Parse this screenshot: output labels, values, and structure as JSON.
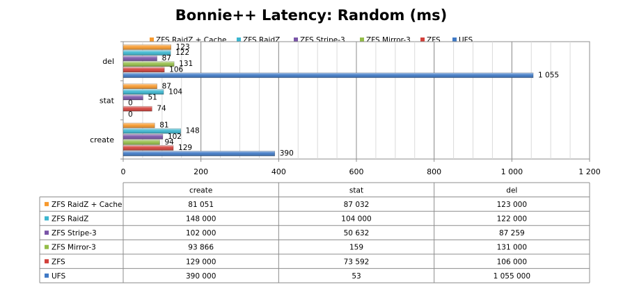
{
  "chart_data": {
    "type": "bar",
    "orientation": "horizontal",
    "title": "Bonnie++ Latency: Random (ms)",
    "categories": [
      "create",
      "stat",
      "del"
    ],
    "xlim": [
      0,
      1200
    ],
    "xticks": [
      0,
      200,
      400,
      600,
      800,
      1000,
      1200
    ],
    "xtick_labels": [
      "0",
      "200",
      "400",
      "600",
      "800",
      "1 000",
      "1 200"
    ],
    "grid": true,
    "legend_position": "top",
    "series": [
      {
        "name": "ZFS RaidZ + Cache",
        "color": "#F79A2E",
        "values": [
          81,
          87,
          123
        ],
        "labels": [
          "81",
          "87",
          "123"
        ],
        "table": [
          "81 051",
          "87 032",
          "123 000"
        ]
      },
      {
        "name": "ZFS RaidZ",
        "color": "#3BB6CF",
        "values": [
          148,
          104,
          122
        ],
        "labels": [
          "148",
          "104",
          "122"
        ],
        "table": [
          "148 000",
          "104 000",
          "122 000"
        ]
      },
      {
        "name": "ZFS Stripe-3",
        "color": "#7A55A8",
        "values": [
          102,
          51,
          87
        ],
        "labels": [
          "102",
          "51",
          "87"
        ],
        "table": [
          "102 000",
          "50 632",
          "87 259"
        ]
      },
      {
        "name": "ZFS Mirror-3",
        "color": "#94BD48",
        "values": [
          94,
          0,
          131
        ],
        "labels": [
          "94",
          "0",
          "131"
        ],
        "table": [
          "93 866",
          "159",
          "131 000"
        ]
      },
      {
        "name": "ZFS",
        "color": "#D2403A",
        "values": [
          129,
          74,
          106
        ],
        "labels": [
          "129",
          "74",
          "106"
        ],
        "table": [
          "129 000",
          "73 592",
          "106 000"
        ]
      },
      {
        "name": "UFS",
        "color": "#3F79C5",
        "values": [
          390,
          0,
          1055
        ],
        "labels": [
          "390",
          "0",
          "1 055"
        ],
        "table": [
          "390 000",
          "53",
          "1 055 000"
        ]
      }
    ]
  }
}
